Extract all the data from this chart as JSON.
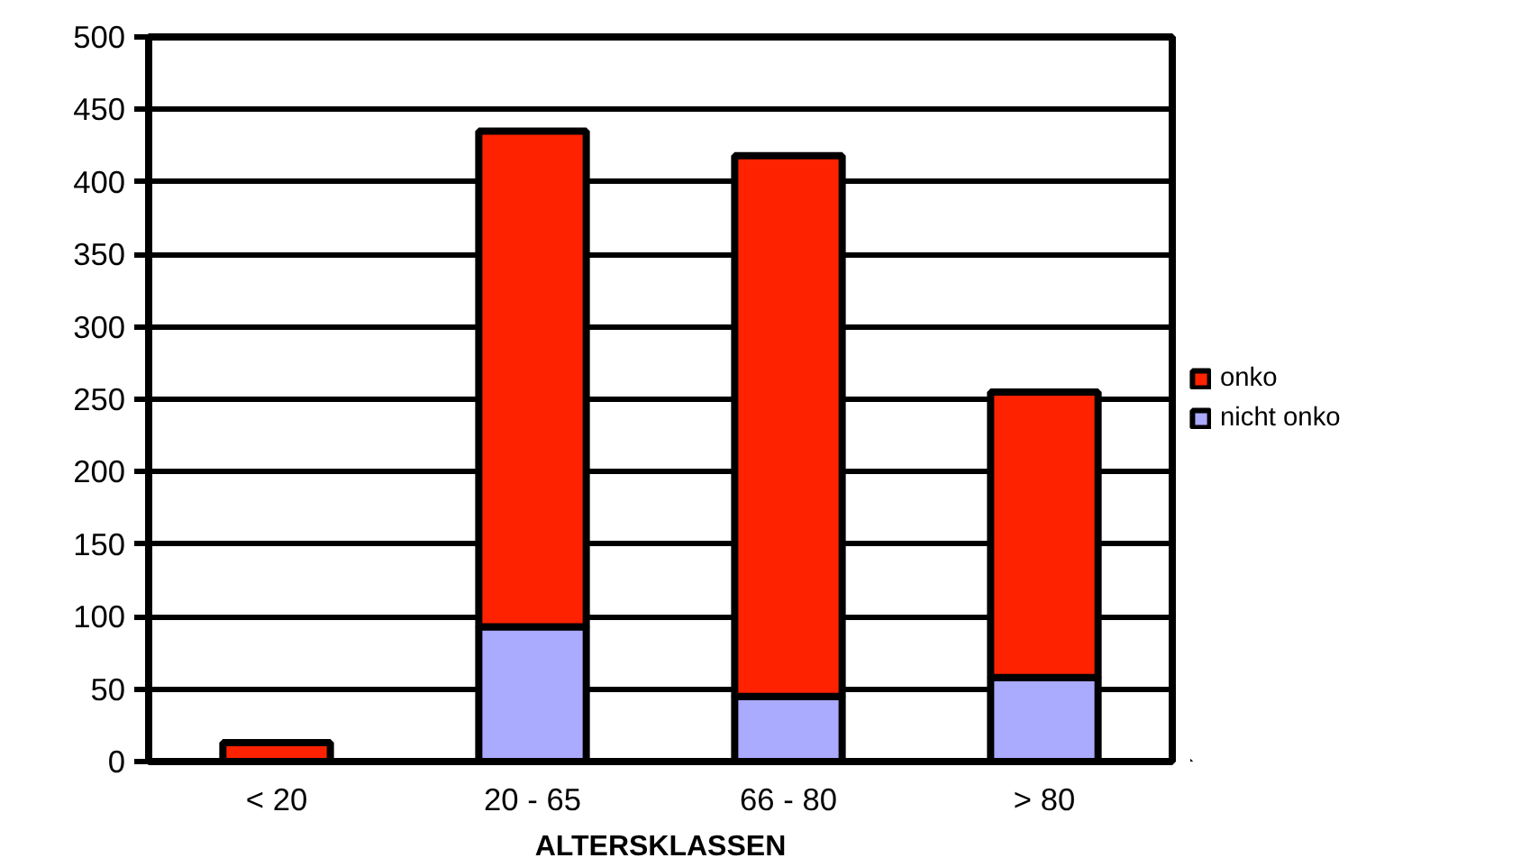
{
  "chart_data": {
    "type": "bar",
    "stacked": true,
    "xlabel": "ALTERSKLASSEN",
    "categories": [
      "< 20",
      "20 - 65",
      "66 - 80",
      "> 80"
    ],
    "series": [
      {
        "name": "nicht onko",
        "color": "#aaaaff",
        "values": [
          null,
          93,
          45,
          58
        ]
      },
      {
        "name": "onko",
        "color": "#ff2200",
        "values": [
          13,
          342,
          373,
          197
        ]
      }
    ],
    "ylim": [
      0,
      500
    ],
    "yticks": [
      0,
      50,
      100,
      150,
      200,
      250,
      300,
      350,
      400,
      450,
      500
    ],
    "grid": "y",
    "legend": "right"
  }
}
